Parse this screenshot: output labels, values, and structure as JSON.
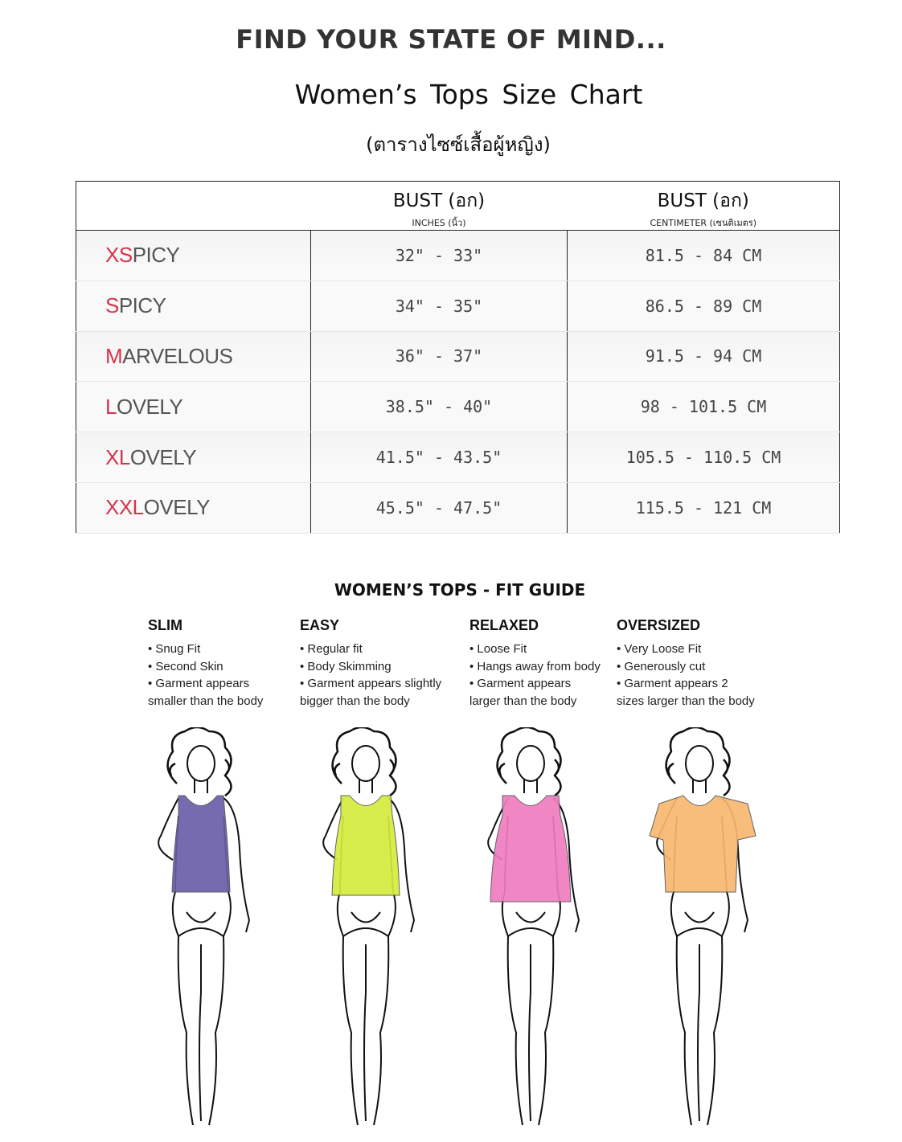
{
  "header": {
    "tagline": "FIND YOUR STATE OF MIND...",
    "title": "Women’s Tops  Size Chart",
    "subtitle": "(ตารางไซซ์เสื้อผู้หญิง)"
  },
  "table": {
    "columns": [
      {
        "label": "BUST (อก)",
        "unit": "INCHES (นิ้ว)"
      },
      {
        "label": "BUST (อก)",
        "unit": "CENTIMETER (เซนติเมตร)"
      }
    ],
    "accent_color": "#d8334a",
    "rows": [
      {
        "prefix": "XS",
        "rest": "PICY",
        "inches": "32\" - 33\"",
        "cm": "81.5 - 84 CM"
      },
      {
        "prefix": "S",
        "rest": "PICY",
        "inches": "34\" - 35\"",
        "cm": "86.5 - 89 CM"
      },
      {
        "prefix": "M",
        "rest": "ARVELOUS",
        "inches": "36\" - 37\"",
        "cm": "91.5 - 94 CM"
      },
      {
        "prefix": "L",
        "rest": "OVELY",
        "inches": "38.5\" - 40\"",
        "cm": "98 - 101.5 CM"
      },
      {
        "prefix": "XL",
        "rest": "OVELY",
        "inches": "41.5\" - 43.5\"",
        "cm": "105.5 - 110.5 CM"
      },
      {
        "prefix": "XXL",
        "rest": "OVELY",
        "inches": "45.5\" - 47.5\"",
        "cm": "115.5 - 121 CM"
      }
    ]
  },
  "fit_guide": {
    "title": "WOMEN’S TOPS - FIT GUIDE",
    "fits": [
      {
        "name": "SLIM",
        "lines": [
          "• Snug Fit",
          "• Second Skin",
          "• Garment appears",
          "smaller than the body"
        ],
        "color": "#6a5fa8"
      },
      {
        "name": "EASY",
        "lines": [
          "• Regular fit",
          "• Body Skimming",
          "• Garment appears slightly",
          "bigger than the body"
        ],
        "color": "#d4ec3c"
      },
      {
        "name": "RELAXED",
        "lines": [
          "• Loose Fit",
          "• Hangs away from body",
          "• Garment appears",
          "larger than the body"
        ],
        "color": "#f07cc0"
      },
      {
        "name": "OVERSIZED",
        "lines": [
          "• Very Loose Fit",
          "• Generously cut",
          "• Garment appears 2",
          "sizes larger than the body"
        ],
        "color": "#f8b870"
      }
    ]
  }
}
